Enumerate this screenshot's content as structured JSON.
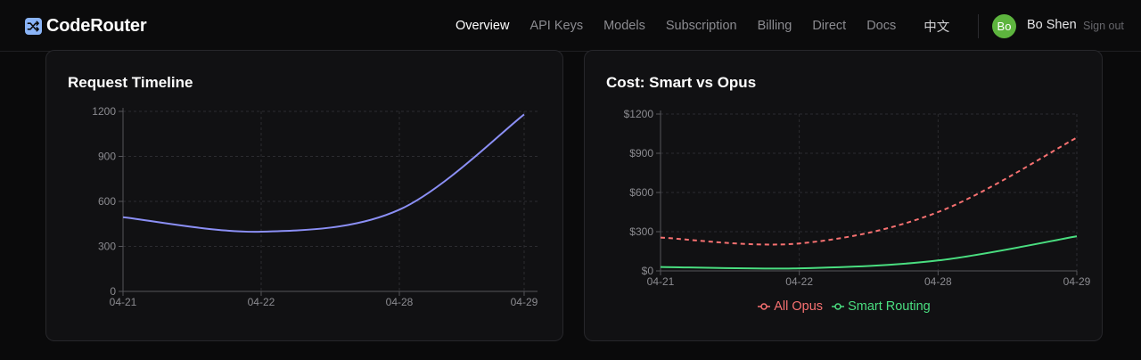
{
  "header": {
    "brand": "CodeRouter",
    "nav": [
      {
        "label": "Overview",
        "active": true
      },
      {
        "label": "API Keys"
      },
      {
        "label": "Models"
      },
      {
        "label": "Subscription"
      },
      {
        "label": "Billing"
      },
      {
        "label": "Direct"
      },
      {
        "label": "Docs"
      }
    ],
    "language": "中文",
    "user": {
      "initials": "Bo",
      "name": "Bo Shen",
      "sign_out": "Sign out"
    }
  },
  "colors": {
    "accent_line": "#8b8ff5",
    "opus": "#f87171",
    "smart": "#4ade80",
    "avatar": "#5db43e"
  },
  "chart_data": [
    {
      "type": "line",
      "title": "Request Timeline",
      "categories": [
        "04-21",
        "04-22",
        "04-28",
        "04-29"
      ],
      "y_ticks": [
        "0",
        "300",
        "600",
        "900",
        "1200"
      ],
      "ylim": [
        0,
        1200
      ],
      "series": [
        {
          "values": [
            495,
            398,
            545,
            1180
          ]
        }
      ],
      "grid": true
    },
    {
      "type": "line",
      "title": "Cost: Smart vs Opus",
      "categories": [
        "04-21",
        "04-22",
        "04-28",
        "04-29"
      ],
      "y_ticks": [
        "$0",
        "$300",
        "$600",
        "$900",
        "$1200"
      ],
      "ylim": [
        0,
        1200
      ],
      "series": [
        {
          "name": "All Opus",
          "values": [
            255,
            210,
            450,
            1020
          ],
          "style": "dashed"
        },
        {
          "name": "Smart Routing",
          "values": [
            30,
            20,
            80,
            265
          ],
          "style": "solid"
        }
      ],
      "legend": "bottom",
      "grid": true
    }
  ]
}
